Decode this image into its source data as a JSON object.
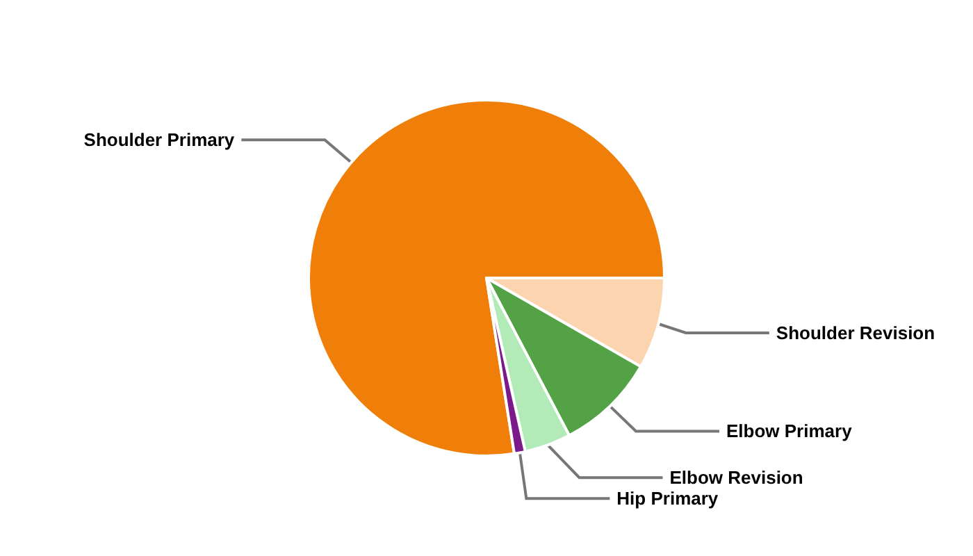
{
  "chart_data": {
    "type": "pie",
    "categories": [
      "Shoulder Primary",
      "Shoulder Revision",
      "Elbow Primary",
      "Elbow Revision",
      "Hip Primary"
    ],
    "values": [
      77.5,
      8.3,
      9.0,
      4.2,
      1.0
    ],
    "colors": [
      "#f07f09",
      "#fcd5b0",
      "#53a245",
      "#b2eab8",
      "#7b1a8a"
    ],
    "legend": false
  }
}
